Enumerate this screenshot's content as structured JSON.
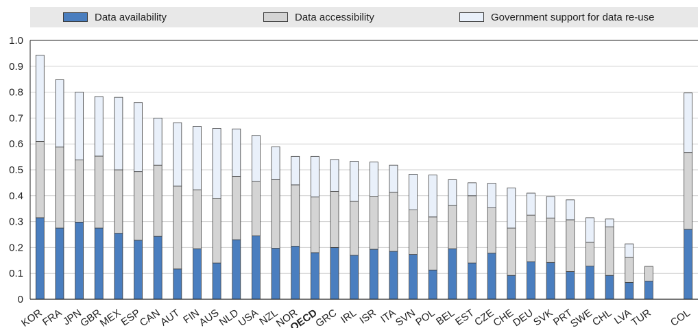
{
  "chart_data": {
    "type": "bar",
    "stacked": true,
    "categories": [
      "KOR",
      "FRA",
      "JPN",
      "GBR",
      "MEX",
      "ESP",
      "CAN",
      "AUT",
      "FIN",
      "AUS",
      "NLD",
      "USA",
      "NZL",
      "NOR",
      "OECD",
      "GRC",
      "IRL",
      "ISR",
      "ITA",
      "SVN",
      "POL",
      "BEL",
      "EST",
      "CZE",
      "CHE",
      "DEU",
      "SVK",
      "PRT",
      "SWE",
      "CHL",
      "LVA",
      "TUR",
      "",
      "COL"
    ],
    "highlight_category": "OECD",
    "series": [
      {
        "name": "Data availability",
        "color": "#4a7ebf",
        "values": [
          0.315,
          0.275,
          0.298,
          0.275,
          0.255,
          0.228,
          0.243,
          0.117,
          0.195,
          0.14,
          0.23,
          0.245,
          0.197,
          0.205,
          0.18,
          0.2,
          0.17,
          0.193,
          0.185,
          0.173,
          0.113,
          0.195,
          0.14,
          0.178,
          0.092,
          0.145,
          0.142,
          0.107,
          0.128,
          0.092,
          0.065,
          0.07,
          null,
          0.27
        ]
      },
      {
        "name": "Data accessibility",
        "color": "#d4d4d4",
        "values": [
          0.295,
          0.313,
          0.24,
          0.278,
          0.245,
          0.265,
          0.275,
          0.32,
          0.228,
          0.25,
          0.245,
          0.21,
          0.265,
          0.237,
          0.215,
          0.217,
          0.208,
          0.205,
          0.228,
          0.172,
          0.205,
          0.167,
          0.26,
          0.175,
          0.183,
          0.18,
          0.172,
          0.2,
          0.092,
          0.188,
          0.097,
          0.057,
          null,
          0.297
        ]
      },
      {
        "name": "Government support for data re-use",
        "color": "#e9f0fa",
        "values": [
          0.333,
          0.26,
          0.262,
          0.23,
          0.28,
          0.267,
          0.182,
          0.245,
          0.245,
          0.27,
          0.183,
          0.178,
          0.127,
          0.11,
          0.157,
          0.123,
          0.155,
          0.132,
          0.105,
          0.138,
          0.162,
          0.1,
          0.05,
          0.095,
          0.155,
          0.085,
          0.083,
          0.077,
          0.095,
          0.03,
          0.052,
          0.0,
          null,
          0.23
        ]
      }
    ],
    "yticks": [
      "0",
      "0.1",
      "0.2",
      "0.3",
      "0.4",
      "0.5",
      "0.6",
      "0.7",
      "0.8",
      "0.9",
      "1.0"
    ],
    "ylim": [
      0,
      1.0
    ],
    "legend_position": "top"
  }
}
